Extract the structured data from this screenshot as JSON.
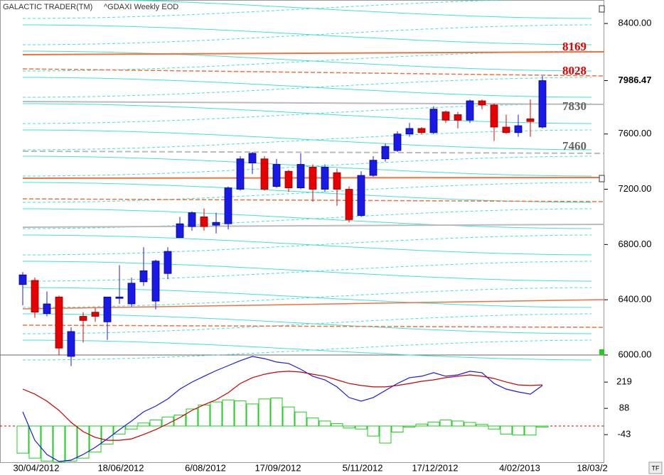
{
  "header": {
    "app": "GALACTIC TRADER(TM)",
    "symbol": "^GDAXI Weekly EOD",
    "tf_button": "TF"
  },
  "chart_data": [
    {
      "type": "candlestick",
      "categories": [
        null,
        "30/04/2012",
        null,
        null,
        null,
        null,
        null,
        null,
        "18/06/2012",
        null,
        null,
        null,
        null,
        null,
        null,
        "6/08/2012",
        null,
        null,
        null,
        null,
        null,
        "17/09/2012",
        null,
        null,
        null,
        null,
        null,
        null,
        "5/11/2012",
        null,
        null,
        null,
        null,
        null,
        "17/12/2012",
        null,
        null,
        null,
        null,
        null,
        null,
        "4/02/2013",
        null,
        null,
        null,
        null,
        null,
        "18/03/2"
      ],
      "open": [
        6510,
        6540,
        6300,
        6420,
        5990,
        6280,
        6310,
        6240,
        6410,
        6370,
        6530,
        6390,
        6590,
        6850,
        6930,
        7000,
        6940,
        6950,
        7200,
        7390,
        7420,
        7220,
        7330,
        7210,
        7360,
        7200,
        7320,
        7200,
        7010,
        7300,
        7420,
        7480,
        7600,
        7640,
        7610,
        7760,
        7740,
        7700,
        7840,
        7810,
        7650,
        7610,
        7710,
        7650,
        null,
        null,
        null,
        null
      ],
      "high": [
        6600,
        6560,
        6460,
        6430,
        6200,
        6310,
        6340,
        6420,
        6650,
        6560,
        6780,
        6690,
        6780,
        7000,
        7040,
        7060,
        7030,
        7220,
        7440,
        7470,
        7440,
        7420,
        7340,
        7460,
        7380,
        7380,
        7350,
        7220,
        7330,
        7440,
        7530,
        7620,
        7680,
        7650,
        7800,
        7770,
        7760,
        7850,
        7850,
        7820,
        7740,
        7740,
        7850,
        8020,
        null,
        null,
        null,
        null
      ],
      "low": [
        6360,
        6270,
        6280,
        6000,
        5920,
        6090,
        6240,
        6110,
        6370,
        6350,
        6500,
        6330,
        6550,
        6860,
        6900,
        6900,
        6880,
        6910,
        7190,
        7310,
        7190,
        7210,
        7180,
        7200,
        7110,
        7180,
        7080,
        6960,
        7000,
        7290,
        7400,
        7470,
        7580,
        7600,
        7600,
        7680,
        7640,
        7680,
        7780,
        7550,
        7600,
        7580,
        7580,
        7640,
        null,
        null,
        null,
        null
      ],
      "close": [
        6580,
        6310,
        6370,
        6050,
        6170,
        6250,
        6280,
        6420,
        6420,
        6520,
        6610,
        6680,
        6750,
        6950,
        7030,
        6930,
        6960,
        7210,
        7420,
        7460,
        7200,
        7380,
        7210,
        7380,
        7200,
        7360,
        7200,
        6980,
        7300,
        7410,
        7510,
        7600,
        7640,
        7610,
        7780,
        7700,
        7700,
        7840,
        7810,
        7650,
        7610,
        7660,
        7690,
        7986.47,
        null,
        null,
        null,
        null
      ],
      "up_color": "#1a1ae6",
      "down_color": "#e60000",
      "ylim": [
        6000,
        8570
      ],
      "yticks": [
        {
          "value": 8400,
          "label": "8400.00"
        },
        {
          "value": 7986.47,
          "label": "7986.47"
        },
        {
          "value": 7600,
          "label": "7600.00"
        },
        {
          "value": 7200,
          "label": "7200.00"
        },
        {
          "value": 6800,
          "label": "6800.00"
        },
        {
          "value": 6400,
          "label": "6400.00"
        },
        {
          "value": 6000,
          "label": "6000.00"
        }
      ],
      "annotations": [
        {
          "text": "8169",
          "color": "#e60000"
        },
        {
          "text": "8028",
          "color": "#e60000"
        },
        {
          "text": "7830",
          "color": "#666666"
        },
        {
          "text": "7460",
          "color": "#666666"
        }
      ]
    },
    {
      "type": "macd",
      "series": [
        {
          "color": "#1a1ae6",
          "values": [
            71,
            -71,
            -142,
            -177,
            -170,
            -142,
            -106,
            -64,
            -18,
            25,
            71,
            99,
            135,
            184,
            219,
            248,
            276,
            301,
            326,
            347,
            336,
            319,
            312,
            283,
            248,
            230,
            195,
            142,
            124,
            142,
            177,
            212,
            241,
            248,
            266,
            248,
            255,
            273,
            266,
            212,
            184,
            170,
            159,
            202,
            null,
            null,
            null,
            null
          ]
        },
        {
          "color": "#cc0000",
          "values": [
            184,
            159,
            124,
            78,
            18,
            -28,
            -57,
            -71,
            -71,
            -64,
            -42,
            -18,
            11,
            42,
            78,
            106,
            131,
            166,
            212,
            241,
            258,
            269,
            273,
            269,
            258,
            248,
            230,
            212,
            202,
            195,
            195,
            202,
            212,
            223,
            230,
            241,
            248,
            255,
            248,
            237,
            219,
            205,
            202,
            205,
            null,
            null,
            null,
            null
          ]
        }
      ],
      "histogram": {
        "color": "#22cc22",
        "values": [
          -135,
          -160,
          -175,
          -180,
          -175,
          -160,
          -130,
          -90,
          -40,
          -15,
          15,
          30,
          45,
          55,
          85,
          105,
          120,
          130,
          125,
          110,
          135,
          140,
          95,
          70,
          40,
          25,
          12,
          -10,
          -15,
          -50,
          -85,
          -30,
          -5,
          10,
          20,
          30,
          25,
          18,
          8,
          -15,
          -40,
          -45,
          -45,
          -5,
          null,
          null,
          null,
          null
        ]
      },
      "ylim": [
        -184,
        354
      ],
      "yticks": [
        219,
        88,
        -43
      ]
    }
  ]
}
